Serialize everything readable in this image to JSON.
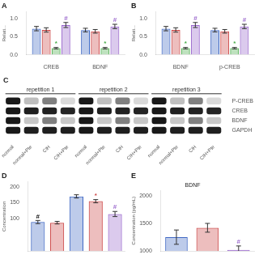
{
  "chart_data": [
    {
      "type": "bar",
      "title": "A",
      "ylabel": "Relati...",
      "categories": [
        "CREB",
        "BDNF"
      ],
      "series": [
        {
          "color": "#4169c4",
          "values": [
            0.72,
            0.68
          ],
          "errors": [
            0.06,
            0.05
          ]
        },
        {
          "color": "#cc4444",
          "values": [
            0.684,
            0.646
          ],
          "errors": [
            0.06,
            0.05
          ]
        },
        {
          "color": "#44aa44",
          "values": [
            0.18,
            0.18
          ],
          "errors": [
            0.02,
            0.02
          ]
        },
        {
          "color": "#9966cc",
          "values": [
            0.82,
            0.78
          ],
          "errors": [
            0.07,
            0.06
          ]
        }
      ],
      "annotations": [
        {
          "text": "*",
          "series": 2,
          "index": 0,
          "color": "#44aa44"
        },
        {
          "text": "*",
          "series": 2,
          "index": 1,
          "color": "#44aa44"
        },
        {
          "text": "#",
          "series": 3,
          "index": 0,
          "color": "#9966cc"
        },
        {
          "text": "#",
          "series": 3,
          "index": 1,
          "color": "#9966cc"
        }
      ],
      "ylim": [
        0,
        1.18
      ],
      "yticks": [
        {
          "value": 0,
          "label": "0.0"
        },
        0.5,
        {
          "value": 1,
          "label": "1.0"
        }
      ],
      "grid": false
    },
    {
      "type": "bar",
      "title": "B",
      "ylabel": "Relati...",
      "categories": [
        "BDNF",
        "p-CREB"
      ],
      "series": [
        {
          "color": "#4169c4",
          "values": [
            0.72,
            0.68
          ],
          "errors": [
            0.06,
            0.05
          ]
        },
        {
          "color": "#cc4444",
          "values": [
            0.684,
            0.646
          ],
          "errors": [
            0.06,
            0.05
          ]
        },
        {
          "color": "#44aa44",
          "values": [
            0.18,
            0.18
          ],
          "errors": [
            0.02,
            0.02
          ]
        },
        {
          "color": "#9966cc",
          "values": [
            0.82,
            0.78
          ],
          "errors": [
            0.07,
            0.06
          ]
        }
      ],
      "annotations": [
        {
          "text": "*",
          "series": 2,
          "index": 0,
          "color": "#44aa44"
        },
        {
          "text": "*",
          "series": 2,
          "index": 1,
          "color": "#44aa44"
        },
        {
          "text": "#",
          "series": 3,
          "index": 0,
          "color": "#9966cc"
        },
        {
          "text": "#",
          "series": 3,
          "index": 1,
          "color": "#9966cc"
        }
      ],
      "ylim": [
        0,
        1.18
      ],
      "yticks": [
        {
          "value": 0,
          "label": "0.0"
        },
        0.5,
        {
          "value": 1,
          "label": "1.0"
        }
      ],
      "grid": false
    },
    {
      "type": "heatmap",
      "title": "C",
      "categories": [
        "normal",
        "normal+Pte",
        "CIH",
        "CIH+Pte",
        "normal",
        "normal+Pte",
        "CIH",
        "CIH+Pte",
        "normal",
        "normal+Pte",
        "CIH",
        "CIH+Pte"
      ],
      "groups": [
        "repetition 1",
        "repetition 2",
        "repetition 3"
      ],
      "rows": [
        "P-CREB",
        "CREB",
        "BDNF",
        "GAPDH"
      ],
      "cells": [
        [
          0.9,
          0.25,
          0.5,
          0.15,
          0.9,
          0.25,
          0.5,
          0.15,
          0.9,
          0.25,
          0.5,
          0.15
        ],
        [
          0.9,
          0.88,
          0.87,
          0.86,
          0.9,
          0.88,
          0.87,
          0.86,
          0.9,
          0.88,
          0.87,
          0.86
        ],
        [
          0.9,
          0.22,
          0.5,
          0.22,
          0.9,
          0.22,
          0.5,
          0.22,
          0.9,
          0.22,
          0.5,
          0.22
        ],
        [
          0.9,
          0.88,
          0.88,
          0.88,
          0.9,
          0.88,
          0.88,
          0.88,
          0.9,
          0.88,
          0.88,
          0.88
        ]
      ],
      "grid": false
    },
    {
      "type": "bar",
      "title": "D",
      "ylabel": "Concentration",
      "categories": [
        null,
        null,
        null,
        null,
        null
      ],
      "values": [
        90,
        88,
        170,
        155,
        115
      ],
      "errors": [
        5,
        4,
        5,
        5,
        8
      ],
      "colors": [
        "#4169c4",
        "#cc4444",
        "#4169c4",
        "#cc4444",
        "#9966cc"
      ],
      "annotations": [
        {
          "text": "#",
          "index": 0,
          "color": "#000000"
        },
        {
          "text": "*",
          "index": 3,
          "color": "#cc4444"
        },
        {
          "text": "#",
          "index": 4,
          "color": "#9966cc"
        }
      ],
      "ylim": [
        0,
        215
      ],
      "yticks": [
        100,
        150,
        200
      ],
      "tick_labels": "y",
      "grid": false
    },
    {
      "type": "bar",
      "title": "E",
      "subtitle": "BDNF",
      "ylabel": "Concentration (pg/mL)",
      "categories": [
        null,
        null,
        null
      ],
      "values": [
        1250,
        1420,
        1020
      ],
      "errors": [
        130,
        80,
        70
      ],
      "colors": [
        "#4169c4",
        "#cc4444",
        "#9966cc"
      ],
      "annotations": [
        {
          "text": "#",
          "index": 2,
          "color": "#9966cc"
        }
      ],
      "ylim": [
        1000,
        2100
      ],
      "yticks": [
        1000,
        1500,
        2000
      ],
      "tick_labels": "y",
      "grid": false
    }
  ]
}
